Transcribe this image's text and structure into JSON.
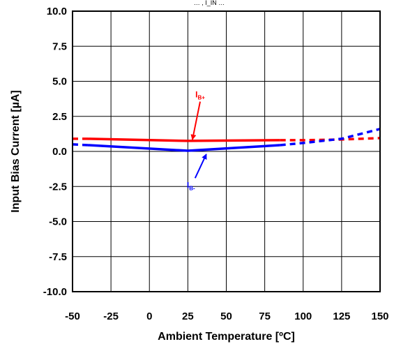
{
  "chart_data": {
    "type": "line",
    "title": "",
    "xlabel": "Ambient Temperature [ºC]",
    "ylabel": "Input Bias Current [µA]",
    "xlim": [
      -50,
      150
    ],
    "ylim": [
      -10,
      10
    ],
    "x_ticks": [
      "-50",
      "-25",
      "0",
      "25",
      "50",
      "75",
      "100",
      "125",
      "150"
    ],
    "y_ticks": [
      "10.0",
      "7.5",
      "5.0",
      "2.5",
      "0.0",
      "-2.5",
      "-5.0",
      "-7.5",
      "-10.0"
    ],
    "grid": true,
    "series": [
      {
        "name": "IB+",
        "color": "#ff0000",
        "style": "solid",
        "x": [
          -40,
          25,
          85
        ],
        "y": [
          0.9,
          0.75,
          0.8
        ]
      },
      {
        "name": "IB+",
        "color": "#ff0000",
        "style": "dashed",
        "x": [
          -50,
          -40
        ],
        "y": [
          0.9,
          0.9
        ]
      },
      {
        "name": "IB+",
        "color": "#ff0000",
        "style": "dashed",
        "x": [
          85,
          100,
          125,
          150
        ],
        "y": [
          0.8,
          0.8,
          0.85,
          0.95
        ]
      },
      {
        "name": "IB-",
        "color": "#0000ff",
        "style": "solid",
        "x": [
          -40,
          25,
          85
        ],
        "y": [
          0.45,
          0.05,
          0.45
        ]
      },
      {
        "name": "IB-",
        "color": "#0000ff",
        "style": "dashed",
        "x": [
          -50,
          -40
        ],
        "y": [
          0.5,
          0.45
        ]
      },
      {
        "name": "IB-",
        "color": "#0000ff",
        "style": "dashed",
        "x": [
          85,
          100,
          125,
          150
        ],
        "y": [
          0.45,
          0.6,
          0.9,
          1.6
        ]
      }
    ],
    "annotations": [
      {
        "label": "I",
        "sub": "B+",
        "color": "#ff0000",
        "x": 33,
        "y": 3.85,
        "arrow_x": 28,
        "arrow_y": 0.85
      },
      {
        "label": "I",
        "sub": "B-",
        "color": "#0000ff",
        "x": 27,
        "y": -2.6,
        "arrow_x": 37,
        "arrow_y": -0.2
      }
    ],
    "top_label": "… , I_IN …"
  }
}
